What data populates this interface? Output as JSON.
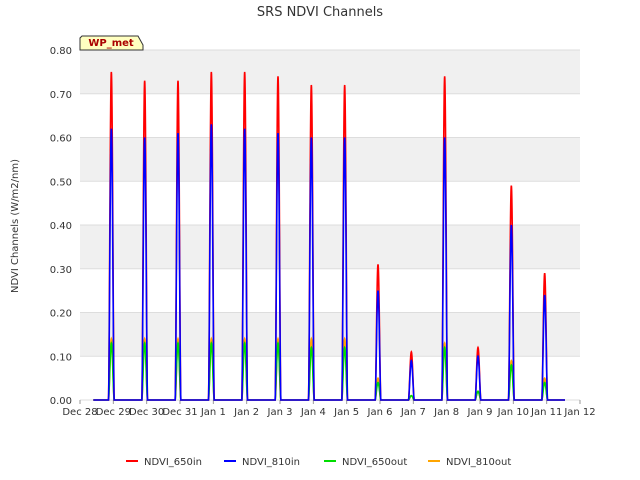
{
  "chart_data": {
    "type": "line",
    "title": "SRS NDVI Channels",
    "ylabel": "NDVI Channels (W/m2/nm)",
    "xlabel": "",
    "ylim": [
      0,
      0.8
    ],
    "yticks": [
      "0.00",
      "0.10",
      "0.20",
      "0.30",
      "0.40",
      "0.50",
      "0.60",
      "0.70",
      "0.80"
    ],
    "xlim": [
      0,
      15
    ],
    "xticks": [
      {
        "day": 0,
        "label": "Dec 28"
      },
      {
        "day": 1,
        "label": "Dec 29"
      },
      {
        "day": 2,
        "label": "Dec 30"
      },
      {
        "day": 3,
        "label": "Dec 31"
      },
      {
        "day": 4,
        "label": "Jan 1"
      },
      {
        "day": 5,
        "label": "Jan 2"
      },
      {
        "day": 6,
        "label": "Jan 3"
      },
      {
        "day": 7,
        "label": "Jan 4"
      },
      {
        "day": 8,
        "label": "Jan 5"
      },
      {
        "day": 9,
        "label": "Jan 6"
      },
      {
        "day": 10,
        "label": "Jan 7"
      },
      {
        "day": 11,
        "label": "Jan 8"
      },
      {
        "day": 12,
        "label": "Jan 9"
      },
      {
        "day": 13,
        "label": "Jan 10"
      },
      {
        "day": 14,
        "label": "Jan 11"
      },
      {
        "day": 15,
        "label": "Jan 12"
      }
    ],
    "station_badge": "WP_met",
    "grid": true,
    "legend_position": "bottom",
    "x_unit": "days since Dec 28",
    "daily_peaks": [
      {
        "day": 1,
        "NDVI_650in": 0.75,
        "NDVI_810in": 0.62,
        "NDVI_650out": 0.13,
        "NDVI_810out": 0.14
      },
      {
        "day": 2,
        "NDVI_650in": 0.73,
        "NDVI_810in": 0.6,
        "NDVI_650out": 0.13,
        "NDVI_810out": 0.14
      },
      {
        "day": 3,
        "NDVI_650in": 0.73,
        "NDVI_810in": 0.61,
        "NDVI_650out": 0.13,
        "NDVI_810out": 0.14
      },
      {
        "day": 4,
        "NDVI_650in": 0.75,
        "NDVI_810in": 0.63,
        "NDVI_650out": 0.13,
        "NDVI_810out": 0.14
      },
      {
        "day": 5,
        "NDVI_650in": 0.75,
        "NDVI_810in": 0.62,
        "NDVI_650out": 0.13,
        "NDVI_810out": 0.14
      },
      {
        "day": 6,
        "NDVI_650in": 0.74,
        "NDVI_810in": 0.61,
        "NDVI_650out": 0.13,
        "NDVI_810out": 0.14
      },
      {
        "day": 7,
        "NDVI_650in": 0.72,
        "NDVI_810in": 0.6,
        "NDVI_650out": 0.12,
        "NDVI_810out": 0.14
      },
      {
        "day": 8,
        "NDVI_650in": 0.72,
        "NDVI_810in": 0.6,
        "NDVI_650out": 0.12,
        "NDVI_810out": 0.14
      },
      {
        "day": 9,
        "NDVI_650in": 0.31,
        "NDVI_810in": 0.25,
        "NDVI_650out": 0.04,
        "NDVI_810out": 0.05
      },
      {
        "day": 10,
        "NDVI_650in": 0.11,
        "NDVI_810in": 0.09,
        "NDVI_650out": 0.01,
        "NDVI_810out": 0.01
      },
      {
        "day": 11,
        "NDVI_650in": 0.74,
        "NDVI_810in": 0.6,
        "NDVI_650out": 0.12,
        "NDVI_810out": 0.13
      },
      {
        "day": 12,
        "NDVI_650in": 0.12,
        "NDVI_810in": 0.1,
        "NDVI_650out": 0.02,
        "NDVI_810out": 0.02
      },
      {
        "day": 13,
        "NDVI_650in": 0.49,
        "NDVI_810in": 0.4,
        "NDVI_650out": 0.08,
        "NDVI_810out": 0.09
      },
      {
        "day": 14,
        "NDVI_650in": 0.29,
        "NDVI_810in": 0.24,
        "NDVI_650out": 0.04,
        "NDVI_810out": 0.05
      }
    ],
    "series": [
      {
        "name": "NDVI_650in",
        "color": "#ff0000"
      },
      {
        "name": "NDVI_810in",
        "color": "#0000ff"
      },
      {
        "name": "NDVI_650out",
        "color": "#00dd00"
      },
      {
        "name": "NDVI_810out",
        "color": "#ffa500"
      }
    ]
  }
}
